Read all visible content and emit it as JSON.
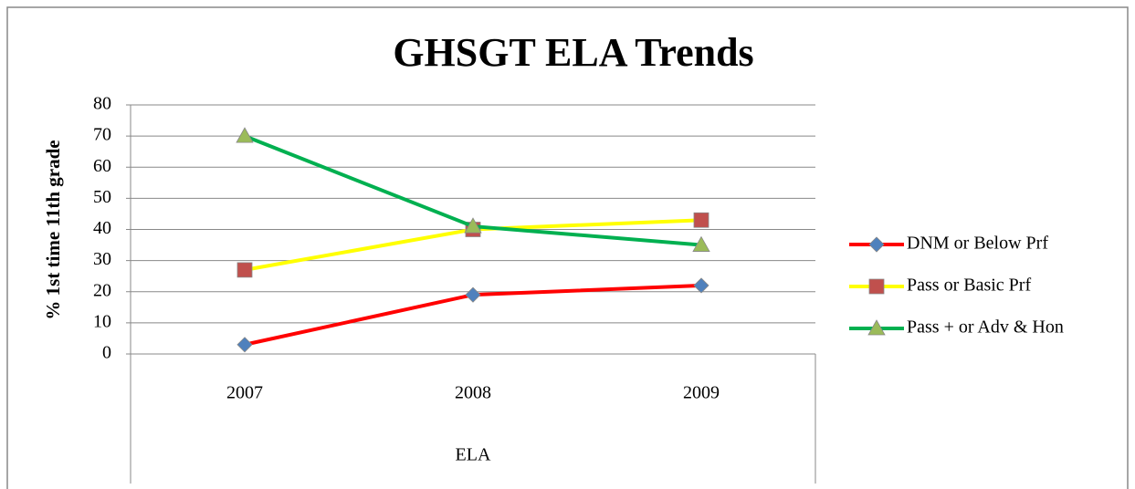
{
  "chart_data": {
    "type": "line",
    "title": "GHSGT ELA Trends",
    "y_label": "% 1st time 11th grade",
    "x_label": "ELA",
    "categories": [
      "2007",
      "2008",
      "2009"
    ],
    "series": [
      {
        "name": "DNM or Below Prf",
        "color": "#ff0000",
        "marker": "diamond",
        "marker_color": "#4f81bd",
        "values": [
          3,
          19,
          22
        ]
      },
      {
        "name": "Pass or Basic Prf",
        "color": "#ffff00",
        "marker": "square",
        "marker_color": "#c0504d",
        "values": [
          27,
          40,
          43
        ]
      },
      {
        "name": "Pass + or Adv & Hon",
        "color": "#00b050",
        "marker": "triangle",
        "marker_color": "#9bbb59",
        "values": [
          70,
          41,
          35
        ]
      }
    ],
    "ylim": [
      0,
      80
    ],
    "yticks": [
      0,
      10,
      20,
      30,
      40,
      50,
      60,
      70,
      80
    ],
    "grid": true,
    "legend": "right"
  }
}
